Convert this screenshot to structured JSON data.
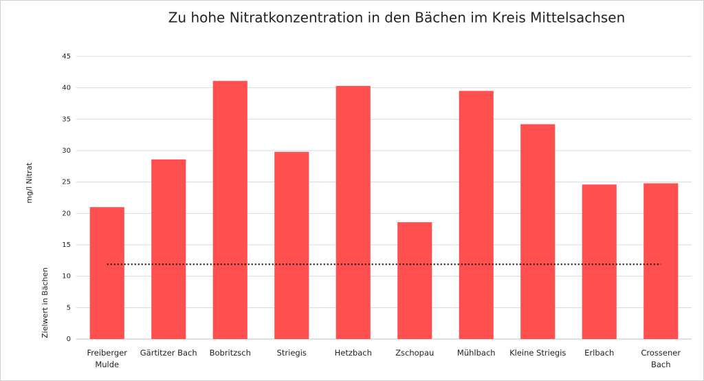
{
  "chart_data": {
    "type": "bar",
    "title": "Zu hohe Nitratkonzentration in den Bächen im Kreis Mittelsachsen",
    "y_label": "mg/l Nitrat",
    "categories": [
      "Freiberger Mulde",
      "Gärtitzer Bach",
      "Bobritzsch",
      "Striegis",
      "Hetzbach",
      "Zschopau",
      "Mühlbach",
      "Kleine Striegis",
      "Erlbach",
      "Crossener Bach"
    ],
    "values": [
      21.0,
      28.6,
      41.1,
      29.8,
      40.3,
      18.6,
      39.5,
      34.2,
      24.6,
      24.8
    ],
    "color": "#ff4f4f",
    "target": {
      "label": "Zielwert in Bächen",
      "value": 11.9
    },
    "ylim": [
      0,
      45
    ],
    "yticks": [
      0,
      5,
      10,
      15,
      20,
      25,
      30,
      35,
      40,
      45
    ],
    "grid": true
  }
}
